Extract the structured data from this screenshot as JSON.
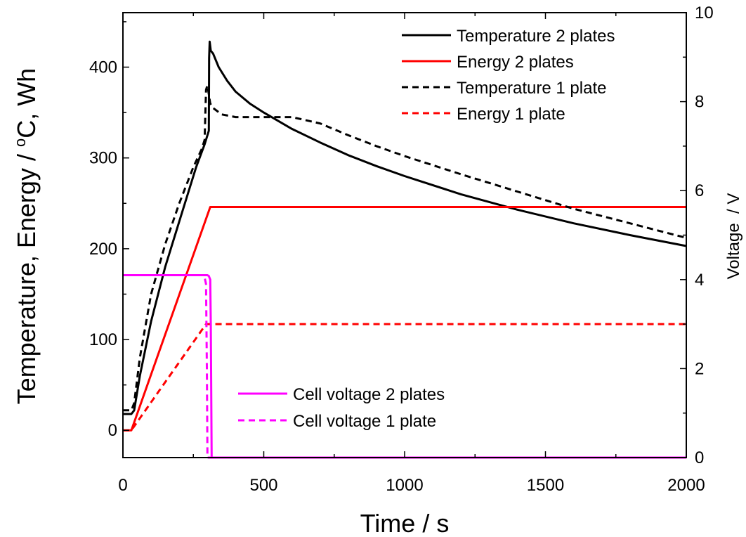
{
  "chart_data": {
    "type": "line",
    "xlabel": "Time / s",
    "ylabel": "Temperature, Energy / °C, Wh",
    "ylabel_parts": {
      "before": "Temperature, Energy / ",
      "sup": "o",
      "after": "C, Wh"
    },
    "y2label": "Voltage  / V",
    "xlim": [
      0,
      2000
    ],
    "ylim": [
      -30,
      460
    ],
    "y2lim": [
      0,
      10
    ],
    "x_ticks": [
      0,
      500,
      1000,
      1500,
      2000
    ],
    "y_ticks": [
      0,
      100,
      200,
      300,
      400
    ],
    "y2_ticks": [
      0,
      2,
      4,
      6,
      8,
      10
    ],
    "grid": false,
    "legends": [
      {
        "placement": "top-right",
        "entries": [
          0,
          1,
          2,
          3
        ]
      },
      {
        "placement": "bottom-left",
        "entries": [
          4,
          5
        ]
      }
    ],
    "series": [
      {
        "name": "Temperature 2 plates",
        "axis": "left",
        "color": "#000000",
        "dash": "solid",
        "x": [
          0,
          30,
          40,
          60,
          100,
          150,
          200,
          230,
          260,
          290,
          300,
          305,
          306,
          308,
          312,
          320,
          340,
          370,
          400,
          450,
          500,
          600,
          700,
          800,
          900,
          1000,
          1200,
          1400,
          1600,
          1800,
          2000
        ],
        "y": [
          18,
          18,
          22,
          60,
          120,
          180,
          230,
          260,
          290,
          315,
          325,
          330,
          410,
          428,
          418,
          415,
          400,
          385,
          373,
          360,
          350,
          332,
          317,
          303,
          291,
          280,
          260,
          243,
          228,
          215,
          203
        ]
      },
      {
        "name": "Energy 2 plates",
        "axis": "left",
        "color": "#ff0000",
        "dash": "solid",
        "x": [
          0,
          30,
          310,
          2000
        ],
        "y": [
          0,
          0,
          246,
          246
        ]
      },
      {
        "name": "Temperature 1 plate",
        "axis": "left",
        "color": "#000000",
        "dash": "dashed",
        "x": [
          0,
          30,
          40,
          60,
          100,
          150,
          200,
          250,
          280,
          290,
          295,
          300,
          305,
          310,
          320,
          350,
          400,
          500,
          600,
          700,
          800,
          900,
          1000,
          1200,
          1400,
          1600,
          1800,
          2000
        ],
        "y": [
          22,
          22,
          30,
          80,
          150,
          205,
          250,
          290,
          310,
          320,
          375,
          380,
          370,
          360,
          355,
          348,
          345,
          345,
          345,
          338,
          325,
          313,
          302,
          282,
          263,
          244,
          228,
          212
        ]
      },
      {
        "name": "Energy 1 plate",
        "axis": "left",
        "color": "#ff0000",
        "dash": "dashed",
        "x": [
          0,
          30,
          295,
          2000
        ],
        "y": [
          0,
          0,
          117,
          117
        ]
      },
      {
        "name": "Cell voltage 2 plates",
        "axis": "right",
        "color": "#ff00ff",
        "dash": "solid",
        "x": [
          0,
          300,
          305,
          310,
          312,
          315,
          320,
          2000
        ],
        "y": [
          4.1,
          4.1,
          4.08,
          4.0,
          3.0,
          0,
          0,
          0
        ]
      },
      {
        "name": "Cell voltage 1 plate",
        "axis": "right",
        "color": "#ff00ff",
        "dash": "dashed",
        "x": [
          0,
          285,
          290,
          295,
          298,
          300,
          310,
          2000
        ],
        "y": [
          4.1,
          4.1,
          4.05,
          3.9,
          2.0,
          0,
          0,
          0
        ]
      }
    ]
  }
}
